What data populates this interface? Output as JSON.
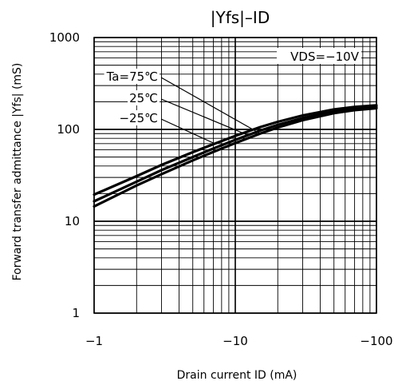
{
  "chart_data": {
    "type": "line",
    "title": "|Yfs|–ID",
    "xlabel": "Drain current ID (mA)",
    "ylabel": "Forward transfer admittance |Yfs| (mS)",
    "x_scale": "log",
    "y_scale": "log",
    "xlim": [
      -1,
      -100
    ],
    "ylim": [
      1,
      1000
    ],
    "x_ticks": [
      "-1",
      "-10",
      "-100"
    ],
    "y_ticks": [
      "1",
      "10",
      "100",
      "1000"
    ],
    "grid": true,
    "condition_label": "VDS=−10V",
    "series": [
      {
        "name": "Ta=75℃",
        "x": [
          -1,
          -2,
          -3,
          -5,
          -7,
          -10,
          -15,
          -20,
          -30,
          -50,
          -70,
          -100
        ],
        "y": [
          14.5,
          24.5,
          32.5,
          46,
          57,
          71,
          90,
          105,
          126,
          150,
          162,
          170
        ]
      },
      {
        "name": "25℃",
        "x": [
          -1,
          -2,
          -3,
          -5,
          -7,
          -10,
          -15,
          -20,
          -30,
          -50,
          -70,
          -100
        ],
        "y": [
          16.5,
          27,
          36,
          50,
          62,
          77,
          97,
          112,
          133,
          157,
          169,
          176
        ]
      },
      {
        "name": "−25℃",
        "x": [
          -1,
          -2,
          -3,
          -5,
          -7,
          -10,
          -15,
          -20,
          -30,
          -50,
          -70,
          -100
        ],
        "y": [
          19.5,
          31,
          41,
          56.5,
          69,
          85,
          106,
          121,
          142,
          165,
          176,
          183
        ]
      }
    ]
  }
}
